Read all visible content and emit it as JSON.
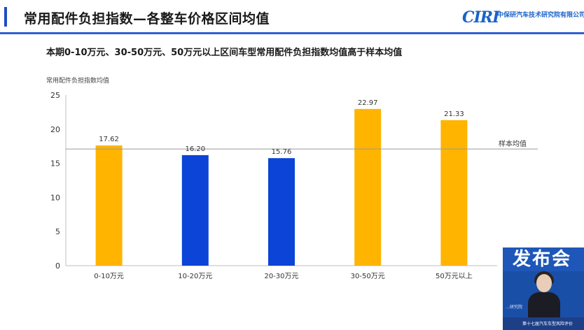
{
  "slide": {
    "title": "常用配件负担指数—各整车价格区间均值",
    "subtitle": "本期0-10万元、30-50万元、50万元以上区间车型常用配件负担指数均值高于样本均值"
  },
  "logo": {
    "mark": "CIRI",
    "name_cn": "中保研汽车技术研究院有限公司"
  },
  "chart_data": {
    "type": "bar",
    "ylabel": "常用配件负担指数均值",
    "ylim": [
      0,
      25
    ],
    "yticks": [
      0,
      5,
      10,
      15,
      20,
      25
    ],
    "categories": [
      "0-10万元",
      "10-20万元",
      "20-30万元",
      "30-50万元",
      "50万元以上"
    ],
    "values": [
      17.62,
      16.2,
      15.76,
      22.97,
      21.33
    ],
    "value_labels": [
      "17.62",
      "16.20",
      "15.76",
      "22.97",
      "21.33"
    ],
    "bar_colors": [
      "#ffb400",
      "#0b44d6",
      "#0b44d6",
      "#ffb400",
      "#ffb400"
    ],
    "reference_line": {
      "label": "样本均值",
      "value": 17.1
    },
    "grid": false,
    "legend": "none"
  },
  "overlay": {
    "banner_text": "发布会",
    "caption": "第十七届汽车车型风险评价",
    "side_text": "…研究院"
  }
}
